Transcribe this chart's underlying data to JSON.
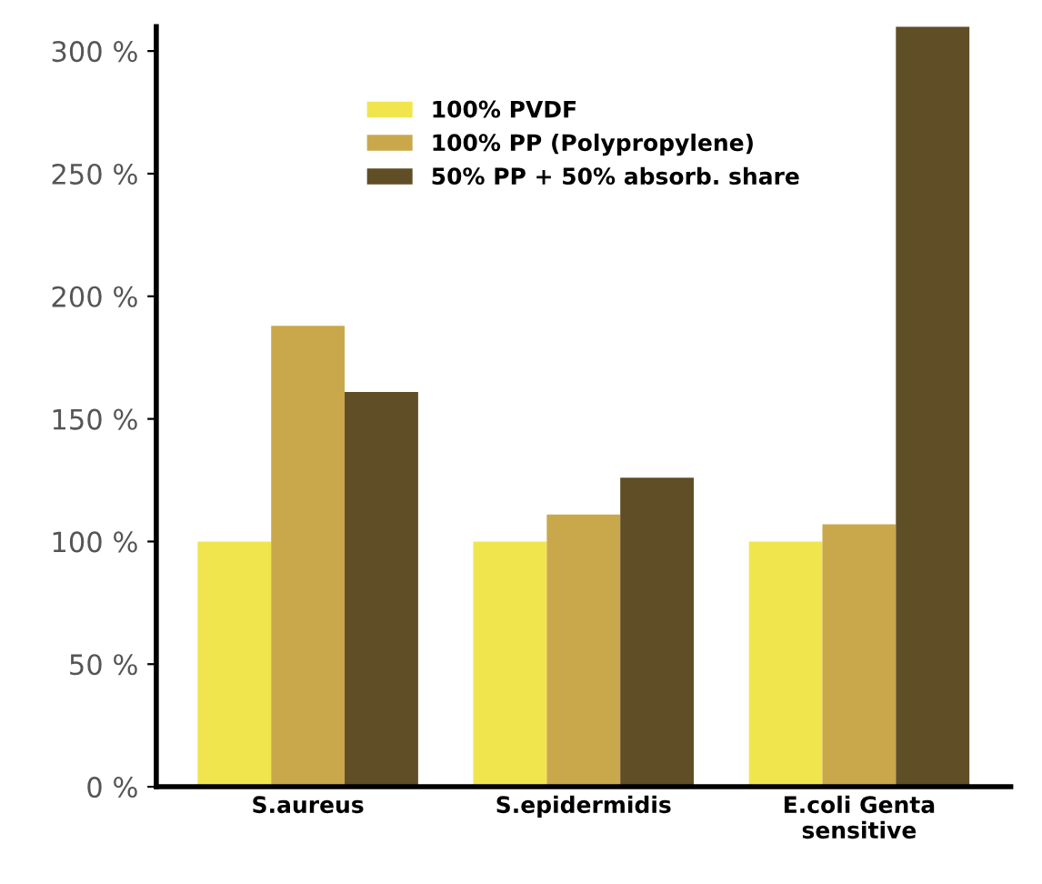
{
  "chart_data": {
    "type": "bar",
    "categories": [
      "S.aureus",
      "S.epidermidis",
      "E.coli Genta\nsensitive"
    ],
    "series": [
      {
        "name": "100% PVDF",
        "color": "#f1e54e",
        "values": [
          100,
          100,
          100
        ]
      },
      {
        "name": "100% PP (Polypropylene)",
        "color": "#c9a84c",
        "values": [
          188,
          111,
          107
        ]
      },
      {
        "name": "50% PP + 50% absorb. share",
        "color": "#5f4e26",
        "values": [
          161,
          126,
          310
        ]
      }
    ],
    "ylim": [
      0,
      310
    ],
    "yticks": [
      {
        "value": 0,
        "label": "0 %"
      },
      {
        "value": 50,
        "label": "50 %"
      },
      {
        "value": 100,
        "label": "100 %"
      },
      {
        "value": 150,
        "label": "150 %"
      },
      {
        "value": 200,
        "label": "200 %"
      },
      {
        "value": 250,
        "label": "250 %"
      },
      {
        "value": 300,
        "label": "300 %"
      }
    ],
    "grid": false,
    "legend": "top"
  }
}
